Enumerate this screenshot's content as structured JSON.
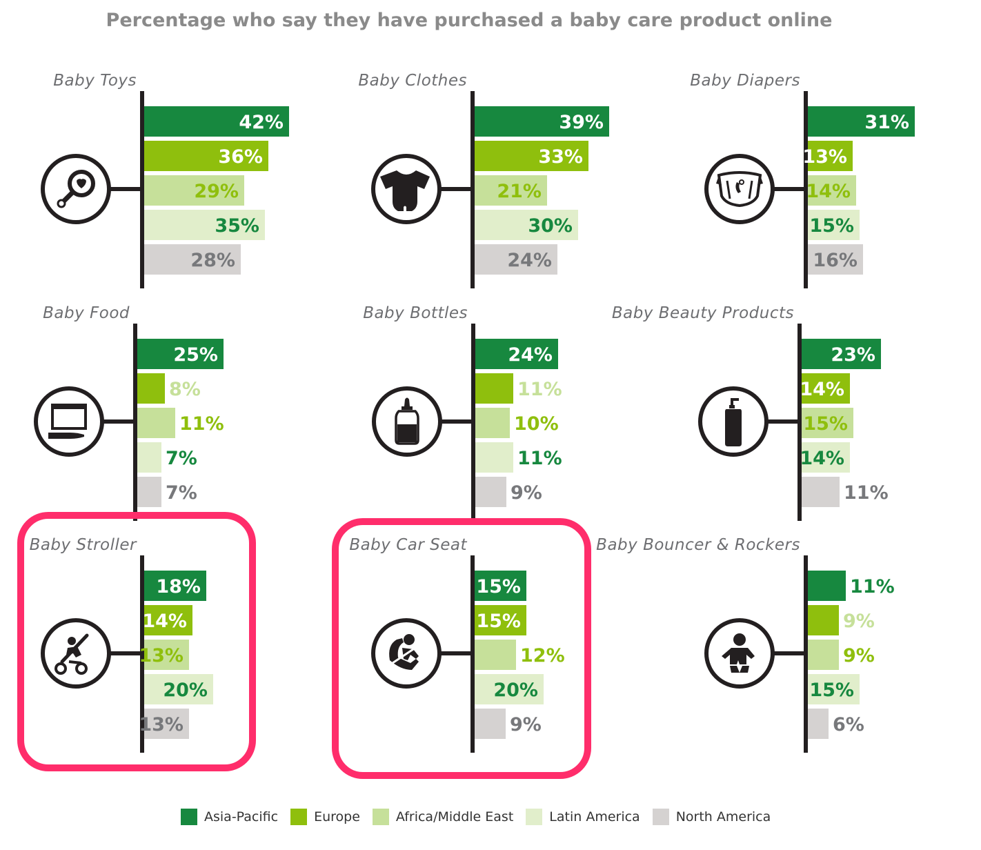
{
  "title": "Percentage who say they have purchased a baby care product online",
  "colors": {
    "asia_pacific": "#17883f",
    "europe": "#8fbf0d",
    "africa_middle_east": "#c6e09a",
    "latin_america": "#e1eecb",
    "north_america": "#d5d2d1",
    "highlight": "#ff2d6b"
  },
  "legend": [
    {
      "label": "Asia-Pacific",
      "color": "#17883f"
    },
    {
      "label": "Europe",
      "color": "#8fbf0d"
    },
    {
      "label": "Africa/Middle East",
      "color": "#c6e09a"
    },
    {
      "label": "Latin America",
      "color": "#e1eecb"
    },
    {
      "label": "North America",
      "color": "#d5d2d1"
    }
  ],
  "chart_data": {
    "type": "bar",
    "orientation": "horizontal",
    "unit": "%",
    "series_names": [
      "Asia-Pacific",
      "Europe",
      "Africa/Middle East",
      "Latin America",
      "North America"
    ],
    "panels": [
      {
        "category": "Baby Toys",
        "icon": "rattle-icon",
        "values": [
          42,
          36,
          29,
          35,
          28
        ],
        "labels": [
          "42%",
          "36%",
          "29%",
          "35%",
          "28%"
        ],
        "highlighted": false
      },
      {
        "category": "Baby Clothes",
        "icon": "onesie-icon",
        "values": [
          39,
          33,
          21,
          30,
          24
        ],
        "labels": [
          "39%",
          "33%",
          "21%",
          "30%",
          "24%"
        ],
        "highlighted": false
      },
      {
        "category": "Baby Diapers",
        "icon": "diaper-icon",
        "values": [
          31,
          13,
          14,
          15,
          16
        ],
        "labels": [
          "31%",
          "13%",
          "14%",
          "15%",
          "16%"
        ],
        "highlighted": false
      },
      {
        "category": "Baby Food",
        "icon": "baby-food-jar-icon",
        "values": [
          25,
          8,
          11,
          7,
          7
        ],
        "labels": [
          "25%",
          "8%",
          "11%",
          "7%",
          "7%"
        ],
        "highlighted": false
      },
      {
        "category": "Baby Bottles",
        "icon": "baby-bottle-icon",
        "values": [
          24,
          11,
          10,
          11,
          9
        ],
        "labels": [
          "24%",
          "11%",
          "10%",
          "11%",
          "9%"
        ],
        "highlighted": false
      },
      {
        "category": "Baby Beauty Products",
        "icon": "lotion-bottle-icon",
        "values": [
          23,
          14,
          15,
          14,
          11
        ],
        "labels": [
          "23%",
          "14%",
          "15%",
          "14%",
          "11%"
        ],
        "highlighted": false
      },
      {
        "category": "Baby Stroller",
        "icon": "stroller-icon",
        "values": [
          18,
          14,
          13,
          20,
          13
        ],
        "labels": [
          "18%",
          "14%",
          "13%",
          "20%",
          "13%"
        ],
        "highlighted": true
      },
      {
        "category": "Baby Car Seat",
        "icon": "car-seat-icon",
        "values": [
          15,
          15,
          12,
          20,
          9
        ],
        "labels": [
          "15%",
          "15%",
          "12%",
          "20%",
          "9%"
        ],
        "highlighted": true
      },
      {
        "category": "Baby Bouncer & Rockers",
        "icon": "baby-icon",
        "values": [
          11,
          9,
          9,
          15,
          6
        ],
        "labels": [
          "11%",
          "9%",
          "9%",
          "15%",
          "6%"
        ],
        "highlighted": false
      }
    ]
  }
}
